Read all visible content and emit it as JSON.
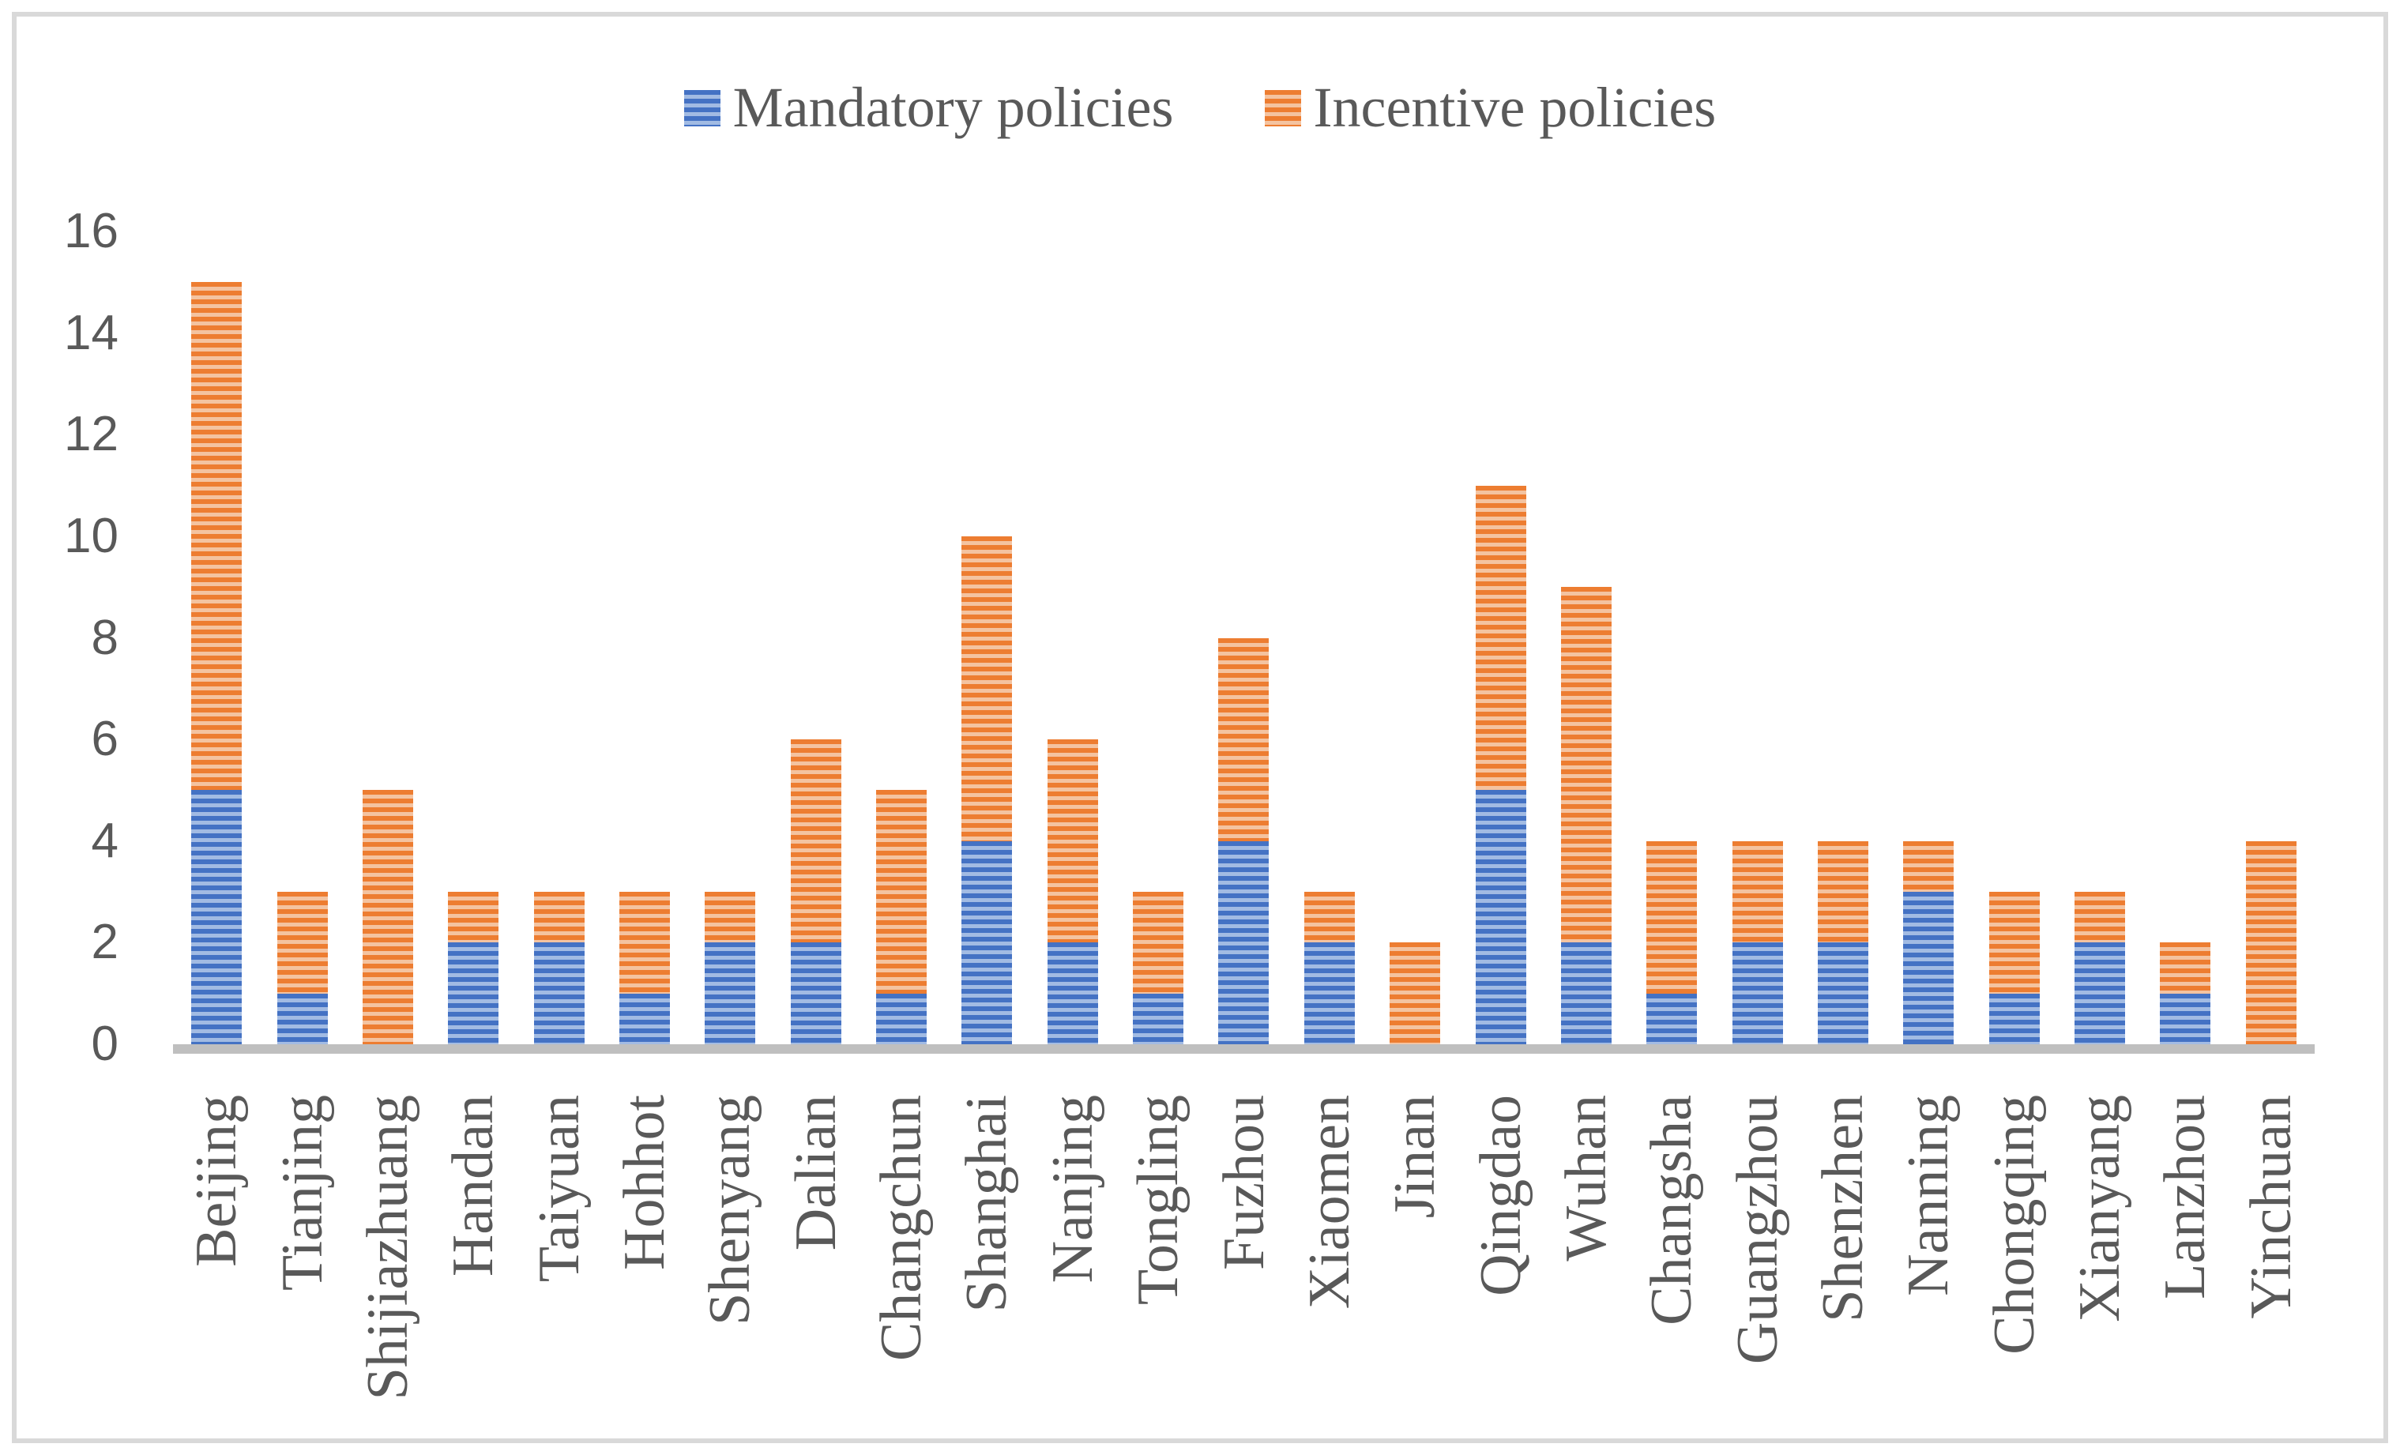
{
  "colors": {
    "mandatory_dark": "#4472C4",
    "mandatory_light": "#A2BBE3",
    "incentive_dark": "#ED7D31",
    "incentive_light": "#F4C3A0",
    "axis_line": "#BFBFBF",
    "frame_border": "#D9D9D9",
    "label_text": "#595959",
    "background": "#FFFFFF"
  },
  "legend": {
    "items": [
      {
        "label": "Mandatory policies",
        "series_key": "mandatory"
      },
      {
        "label": "Incentive policies",
        "series_key": "incentive"
      }
    ]
  },
  "chart_data": {
    "type": "bar",
    "stacked": true,
    "title": "",
    "xlabel": "",
    "ylabel": "",
    "ylim": [
      0,
      16
    ],
    "yticks": [
      0,
      2,
      4,
      6,
      8,
      10,
      12,
      14,
      16
    ],
    "grid": false,
    "legend_position": "top-center",
    "categories": [
      "Beijing",
      "Tianjing",
      "Shijiazhuang",
      "Handan",
      "Taiyuan",
      "Hohhot",
      "Shenyang",
      "Dalian",
      "Changchun",
      "Shanghai",
      "Nanjing",
      "Tongling",
      "Fuzhou",
      "Xiaomen",
      "Jinan",
      "Qingdao",
      "Wuhan",
      "Changsha",
      "Guangzhou",
      "Shenzhen",
      "Nanning",
      "Chongqing",
      "Xianyang",
      "Lanzhou",
      "Yinchuan"
    ],
    "series": [
      {
        "name": "Mandatory policies",
        "values": [
          5,
          1,
          0,
          2,
          2,
          1,
          2,
          2,
          1,
          4,
          2,
          1,
          4,
          2,
          0,
          5,
          2,
          1,
          2,
          2,
          3,
          1,
          2,
          1,
          0
        ]
      },
      {
        "name": "Incentive policies",
        "values": [
          10,
          2,
          5,
          1,
          1,
          2,
          1,
          4,
          4,
          6,
          4,
          2,
          4,
          1,
          2,
          6,
          7,
          3,
          2,
          2,
          1,
          2,
          1,
          1,
          4
        ]
      }
    ]
  }
}
